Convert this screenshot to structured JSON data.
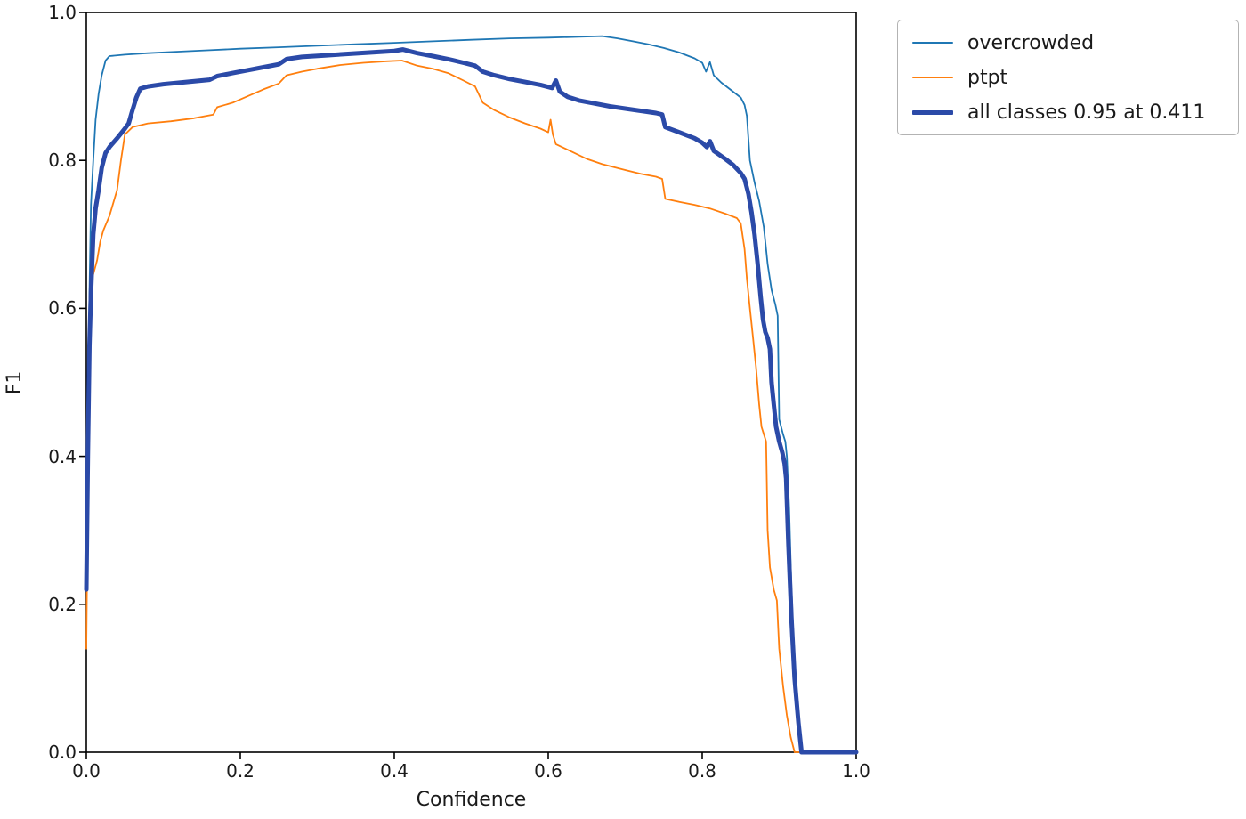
{
  "chart_data": {
    "type": "line",
    "title": "",
    "xlabel": "Confidence",
    "ylabel": "F1",
    "xlim": [
      0.0,
      1.0
    ],
    "ylim": [
      0.0,
      1.0
    ],
    "grid": false,
    "legend_position": "upper right outside axes",
    "x_ticks": [
      "0.0",
      "0.2",
      "0.4",
      "0.6",
      "0.8",
      "1.0"
    ],
    "y_ticks": [
      "0.0",
      "0.2",
      "0.4",
      "0.6",
      "0.8",
      "1.0"
    ],
    "axis_color": "#000000",
    "series": [
      {
        "name": "overcrowded",
        "color": "#1f77b4",
        "linewidth": 1.8,
        "points": [
          [
            0.0,
            0.22
          ],
          [
            0.002,
            0.45
          ],
          [
            0.004,
            0.62
          ],
          [
            0.006,
            0.74
          ],
          [
            0.009,
            0.8
          ],
          [
            0.012,
            0.855
          ],
          [
            0.016,
            0.89
          ],
          [
            0.02,
            0.915
          ],
          [
            0.025,
            0.935
          ],
          [
            0.03,
            0.941
          ],
          [
            0.05,
            0.943
          ],
          [
            0.08,
            0.945
          ],
          [
            0.12,
            0.947
          ],
          [
            0.16,
            0.949
          ],
          [
            0.2,
            0.951
          ],
          [
            0.25,
            0.953
          ],
          [
            0.3,
            0.955
          ],
          [
            0.35,
            0.957
          ],
          [
            0.4,
            0.959
          ],
          [
            0.45,
            0.961
          ],
          [
            0.5,
            0.963
          ],
          [
            0.55,
            0.965
          ],
          [
            0.6,
            0.966
          ],
          [
            0.64,
            0.967
          ],
          [
            0.67,
            0.968
          ],
          [
            0.69,
            0.965
          ],
          [
            0.71,
            0.961
          ],
          [
            0.73,
            0.957
          ],
          [
            0.75,
            0.952
          ],
          [
            0.77,
            0.946
          ],
          [
            0.79,
            0.938
          ],
          [
            0.8,
            0.932
          ],
          [
            0.805,
            0.92
          ],
          [
            0.81,
            0.933
          ],
          [
            0.815,
            0.915
          ],
          [
            0.825,
            0.905
          ],
          [
            0.84,
            0.893
          ],
          [
            0.85,
            0.885
          ],
          [
            0.855,
            0.875
          ],
          [
            0.858,
            0.86
          ],
          [
            0.862,
            0.8
          ],
          [
            0.868,
            0.77
          ],
          [
            0.874,
            0.745
          ],
          [
            0.88,
            0.71
          ],
          [
            0.885,
            0.66
          ],
          [
            0.89,
            0.625
          ],
          [
            0.895,
            0.605
          ],
          [
            0.898,
            0.59
          ],
          [
            0.9,
            0.45
          ],
          [
            0.905,
            0.43
          ],
          [
            0.908,
            0.42
          ],
          [
            0.91,
            0.4
          ],
          [
            0.913,
            0.33
          ],
          [
            0.916,
            0.22
          ],
          [
            0.92,
            0.12
          ],
          [
            0.925,
            0.04
          ],
          [
            0.928,
            0.0
          ],
          [
            1.0,
            0.0
          ]
        ]
      },
      {
        "name": "ptpt",
        "color": "#ff7f0e",
        "linewidth": 1.8,
        "points": [
          [
            0.0,
            0.14
          ],
          [
            0.002,
            0.35
          ],
          [
            0.004,
            0.52
          ],
          [
            0.006,
            0.635
          ],
          [
            0.01,
            0.65
          ],
          [
            0.014,
            0.665
          ],
          [
            0.018,
            0.69
          ],
          [
            0.022,
            0.705
          ],
          [
            0.03,
            0.725
          ],
          [
            0.04,
            0.76
          ],
          [
            0.045,
            0.8
          ],
          [
            0.05,
            0.835
          ],
          [
            0.06,
            0.845
          ],
          [
            0.08,
            0.85
          ],
          [
            0.11,
            0.853
          ],
          [
            0.14,
            0.857
          ],
          [
            0.165,
            0.862
          ],
          [
            0.17,
            0.872
          ],
          [
            0.19,
            0.878
          ],
          [
            0.21,
            0.887
          ],
          [
            0.23,
            0.896
          ],
          [
            0.25,
            0.904
          ],
          [
            0.26,
            0.915
          ],
          [
            0.28,
            0.92
          ],
          [
            0.3,
            0.924
          ],
          [
            0.33,
            0.929
          ],
          [
            0.36,
            0.932
          ],
          [
            0.39,
            0.934
          ],
          [
            0.41,
            0.935
          ],
          [
            0.43,
            0.928
          ],
          [
            0.45,
            0.924
          ],
          [
            0.47,
            0.918
          ],
          [
            0.49,
            0.908
          ],
          [
            0.505,
            0.9
          ],
          [
            0.515,
            0.878
          ],
          [
            0.53,
            0.868
          ],
          [
            0.55,
            0.858
          ],
          [
            0.57,
            0.85
          ],
          [
            0.59,
            0.843
          ],
          [
            0.6,
            0.838
          ],
          [
            0.603,
            0.855
          ],
          [
            0.606,
            0.835
          ],
          [
            0.61,
            0.822
          ],
          [
            0.63,
            0.812
          ],
          [
            0.65,
            0.802
          ],
          [
            0.67,
            0.795
          ],
          [
            0.7,
            0.787
          ],
          [
            0.72,
            0.782
          ],
          [
            0.74,
            0.778
          ],
          [
            0.748,
            0.775
          ],
          [
            0.752,
            0.748
          ],
          [
            0.77,
            0.744
          ],
          [
            0.79,
            0.74
          ],
          [
            0.81,
            0.735
          ],
          [
            0.83,
            0.728
          ],
          [
            0.845,
            0.722
          ],
          [
            0.85,
            0.715
          ],
          [
            0.855,
            0.68
          ],
          [
            0.858,
            0.64
          ],
          [
            0.862,
            0.6
          ],
          [
            0.866,
            0.56
          ],
          [
            0.87,
            0.52
          ],
          [
            0.874,
            0.47
          ],
          [
            0.877,
            0.44
          ],
          [
            0.88,
            0.43
          ],
          [
            0.883,
            0.42
          ],
          [
            0.885,
            0.3
          ],
          [
            0.888,
            0.25
          ],
          [
            0.893,
            0.22
          ],
          [
            0.897,
            0.205
          ],
          [
            0.9,
            0.14
          ],
          [
            0.905,
            0.09
          ],
          [
            0.91,
            0.05
          ],
          [
            0.915,
            0.02
          ],
          [
            0.92,
            0.0
          ],
          [
            1.0,
            0.0
          ]
        ]
      },
      {
        "name": "all classes 0.95 at 0.411",
        "color": "#2b4aa8",
        "linewidth": 5,
        "points": [
          [
            0.0,
            0.22
          ],
          [
            0.002,
            0.4
          ],
          [
            0.004,
            0.55
          ],
          [
            0.006,
            0.62
          ],
          [
            0.009,
            0.7
          ],
          [
            0.012,
            0.735
          ],
          [
            0.016,
            0.76
          ],
          [
            0.02,
            0.79
          ],
          [
            0.025,
            0.81
          ],
          [
            0.03,
            0.818
          ],
          [
            0.04,
            0.83
          ],
          [
            0.05,
            0.843
          ],
          [
            0.055,
            0.85
          ],
          [
            0.06,
            0.868
          ],
          [
            0.065,
            0.885
          ],
          [
            0.07,
            0.897
          ],
          [
            0.08,
            0.9
          ],
          [
            0.1,
            0.903
          ],
          [
            0.13,
            0.906
          ],
          [
            0.16,
            0.909
          ],
          [
            0.17,
            0.914
          ],
          [
            0.19,
            0.918
          ],
          [
            0.21,
            0.922
          ],
          [
            0.23,
            0.926
          ],
          [
            0.25,
            0.93
          ],
          [
            0.26,
            0.937
          ],
          [
            0.28,
            0.94
          ],
          [
            0.31,
            0.942
          ],
          [
            0.34,
            0.944
          ],
          [
            0.37,
            0.946
          ],
          [
            0.4,
            0.948
          ],
          [
            0.411,
            0.95
          ],
          [
            0.43,
            0.945
          ],
          [
            0.45,
            0.941
          ],
          [
            0.47,
            0.937
          ],
          [
            0.49,
            0.932
          ],
          [
            0.505,
            0.928
          ],
          [
            0.515,
            0.92
          ],
          [
            0.53,
            0.915
          ],
          [
            0.55,
            0.91
          ],
          [
            0.57,
            0.906
          ],
          [
            0.59,
            0.902
          ],
          [
            0.605,
            0.898
          ],
          [
            0.61,
            0.908
          ],
          [
            0.615,
            0.893
          ],
          [
            0.625,
            0.886
          ],
          [
            0.64,
            0.881
          ],
          [
            0.66,
            0.877
          ],
          [
            0.68,
            0.873
          ],
          [
            0.7,
            0.87
          ],
          [
            0.72,
            0.867
          ],
          [
            0.74,
            0.864
          ],
          [
            0.748,
            0.862
          ],
          [
            0.752,
            0.845
          ],
          [
            0.77,
            0.838
          ],
          [
            0.79,
            0.83
          ],
          [
            0.8,
            0.824
          ],
          [
            0.806,
            0.818
          ],
          [
            0.81,
            0.826
          ],
          [
            0.815,
            0.813
          ],
          [
            0.83,
            0.802
          ],
          [
            0.84,
            0.794
          ],
          [
            0.85,
            0.783
          ],
          [
            0.855,
            0.775
          ],
          [
            0.86,
            0.755
          ],
          [
            0.864,
            0.73
          ],
          [
            0.868,
            0.7
          ],
          [
            0.872,
            0.66
          ],
          [
            0.876,
            0.615
          ],
          [
            0.879,
            0.585
          ],
          [
            0.882,
            0.568
          ],
          [
            0.885,
            0.56
          ],
          [
            0.888,
            0.545
          ],
          [
            0.89,
            0.5
          ],
          [
            0.893,
            0.47
          ],
          [
            0.896,
            0.44
          ],
          [
            0.9,
            0.42
          ],
          [
            0.904,
            0.405
          ],
          [
            0.907,
            0.39
          ],
          [
            0.909,
            0.37
          ],
          [
            0.912,
            0.28
          ],
          [
            0.916,
            0.18
          ],
          [
            0.92,
            0.1
          ],
          [
            0.925,
            0.04
          ],
          [
            0.929,
            0.0
          ],
          [
            1.0,
            0.0
          ]
        ]
      }
    ]
  },
  "legend": {
    "items": [
      {
        "label": "overcrowded"
      },
      {
        "label": "ptpt"
      },
      {
        "label": "all classes 0.95 at 0.411"
      }
    ]
  }
}
